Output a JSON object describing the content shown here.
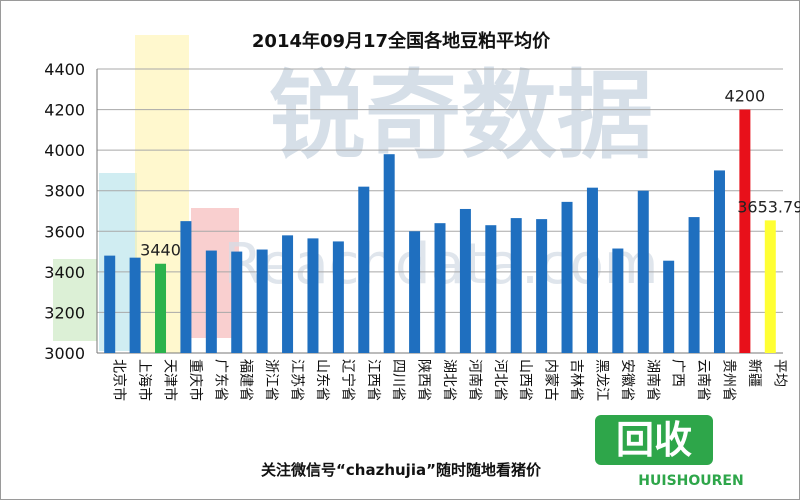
{
  "chart_data": {
    "type": "bar",
    "title": "2014年09月17全国各地豆粕平均价",
    "categories": [
      "北京市",
      "上海市",
      "天津市",
      "重庆市",
      "广东省",
      "福建省",
      "浙江省",
      "江苏省",
      "山东省",
      "辽宁省",
      "江西省",
      "四川省",
      "陕西省",
      "湖北省",
      "河南省",
      "河北省",
      "山西省",
      "内蒙古",
      "吉林省",
      "黑龙江",
      "安徽省",
      "湖南省",
      "广西",
      "云南省",
      "贵州省",
      "新疆",
      "平均"
    ],
    "values": [
      3480,
      3470,
      3440,
      3650,
      3505,
      3500,
      3510,
      3580,
      3565,
      3550,
      3820,
      3980,
      3600,
      3640,
      3710,
      3630,
      3665,
      3660,
      3745,
      3815,
      3515,
      3800,
      3455,
      3670,
      3900,
      4200,
      3653.79
    ],
    "bar_colors": [
      "#1f6fbf",
      "#1f6fbf",
      "#2bb24c",
      "#1f6fbf",
      "#1f6fbf",
      "#1f6fbf",
      "#1f6fbf",
      "#1f6fbf",
      "#1f6fbf",
      "#1f6fbf",
      "#1f6fbf",
      "#1f6fbf",
      "#1f6fbf",
      "#1f6fbf",
      "#1f6fbf",
      "#1f6fbf",
      "#1f6fbf",
      "#1f6fbf",
      "#1f6fbf",
      "#1f6fbf",
      "#1f6fbf",
      "#1f6fbf",
      "#1f6fbf",
      "#1f6fbf",
      "#1f6fbf",
      "#e8101a",
      "#ffff33"
    ],
    "data_labels": [
      {
        "index": 2,
        "text": "3440"
      },
      {
        "index": 25,
        "text": "4200"
      },
      {
        "index": 26,
        "text": "3653.79"
      }
    ],
    "ylim": [
      3000,
      4400
    ],
    "yticks": [
      "3000",
      "3200",
      "3400",
      "3600",
      "3800",
      "4000",
      "4200",
      "4400"
    ],
    "grid": true,
    "legend": "none"
  },
  "footer": {
    "text": "关注微信号“chazhujia”随时随地看猪价"
  },
  "watermarks": {
    "main": "锐奇数据",
    "sub": "Reachdata.com",
    "logo": "回收",
    "logo_sub": "HUISHOUREN"
  }
}
